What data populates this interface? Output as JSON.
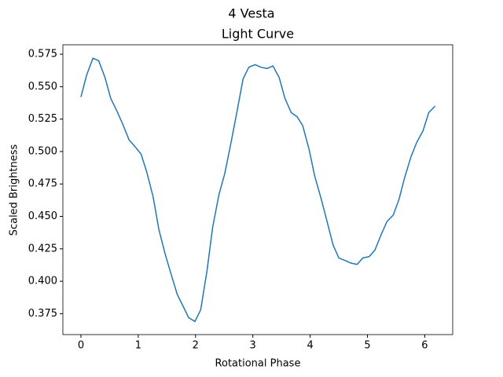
{
  "chart_data": {
    "type": "line",
    "suptitle": "4 Vesta",
    "title": "Light Curve",
    "xlabel": "Rotational Phase",
    "ylabel": "Scaled Brightness",
    "x": [
      0,
      0.1,
      0.21,
      0.31,
      0.42,
      0.52,
      0.63,
      0.73,
      0.84,
      0.94,
      1.05,
      1.15,
      1.26,
      1.36,
      1.47,
      1.57,
      1.68,
      1.78,
      1.88,
      1.99,
      2.09,
      2.2,
      2.3,
      2.41,
      2.51,
      2.62,
      2.72,
      2.83,
      2.93,
      3.04,
      3.14,
      3.25,
      3.35,
      3.46,
      3.56,
      3.67,
      3.77,
      3.87,
      3.98,
      4.08,
      4.19,
      4.29,
      4.4,
      4.5,
      4.61,
      4.71,
      4.82,
      4.92,
      5.03,
      5.13,
      5.24,
      5.34,
      5.45,
      5.55,
      5.65,
      5.76,
      5.86,
      5.97,
      6.07,
      6.18
    ],
    "series": [
      {
        "color": "#1f77b4",
        "values": [
          0.542,
          0.559,
          0.572,
          0.57,
          0.557,
          0.541,
          0.531,
          0.521,
          0.509,
          0.504,
          0.498,
          0.484,
          0.465,
          0.44,
          0.421,
          0.406,
          0.39,
          0.381,
          0.372,
          0.369,
          0.378,
          0.408,
          0.442,
          0.467,
          0.483,
          0.507,
          0.53,
          0.556,
          0.565,
          0.567,
          0.565,
          0.564,
          0.566,
          0.557,
          0.541,
          0.53,
          0.527,
          0.52,
          0.502,
          0.481,
          0.464,
          0.447,
          0.428,
          0.418,
          0.416,
          0.414,
          0.413,
          0.418,
          0.419,
          0.424,
          0.436,
          0.446,
          0.451,
          0.463,
          0.48,
          0.496,
          0.507,
          0.516,
          0.53,
          0.535
        ]
      }
    ],
    "xlim": [
      -0.315,
      6.488
    ],
    "ylim": [
      0.3589,
      0.5823
    ],
    "xticks": [
      0,
      1,
      2,
      3,
      4,
      5,
      6
    ],
    "yticks": [
      0.375,
      {
        "value": 0.4,
        "label": "0.400"
      },
      0.425,
      {
        "value": 0.45,
        "label": "0.450"
      },
      0.475,
      {
        "value": 0.5,
        "label": "0.500"
      },
      0.525,
      {
        "value": 0.55,
        "label": "0.550"
      },
      0.575
    ]
  }
}
